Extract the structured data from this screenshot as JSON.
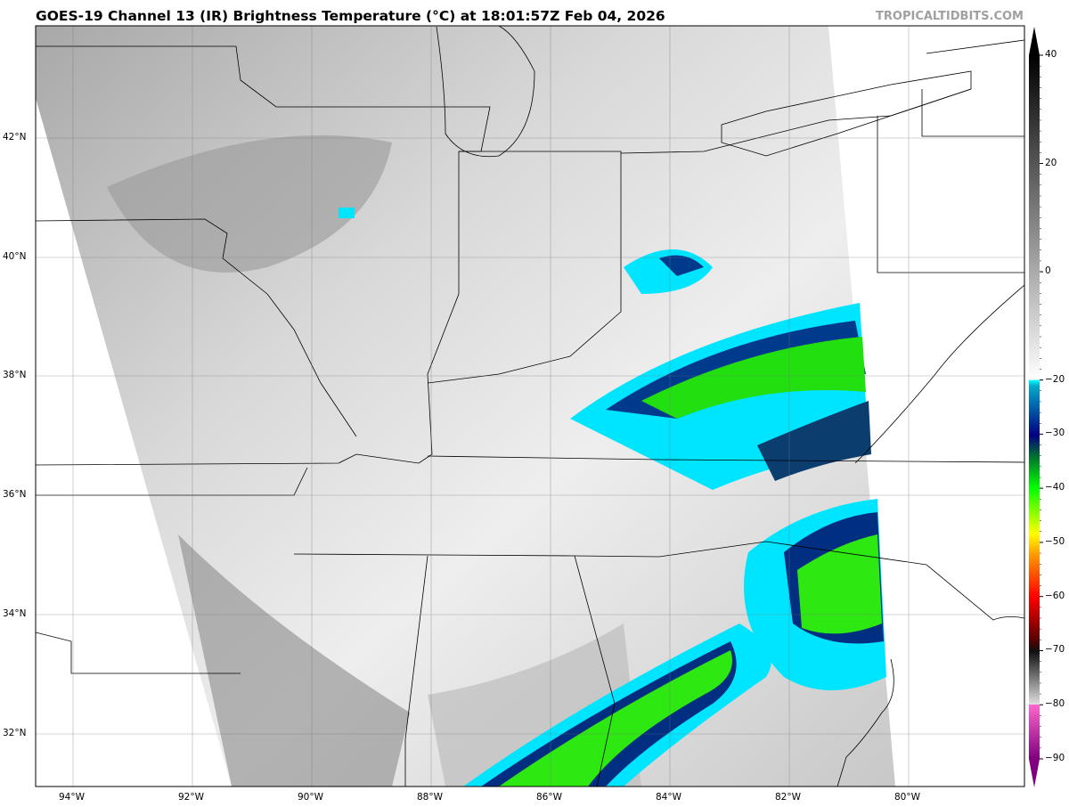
{
  "header": {
    "title": "GOES-19 Channel 13 (IR) Brightness Temperature (°C) at 18:01:57Z Feb 04, 2026",
    "credit": "TROPICALTIDBITS.COM"
  },
  "map": {
    "lon_labels": [
      "94°W",
      "92°W",
      "90°W",
      "88°W",
      "86°W",
      "84°W",
      "82°W",
      "80°W"
    ],
    "lat_labels": [
      "42°N",
      "40°N",
      "38°N",
      "36°N",
      "34°N",
      "32°N"
    ]
  },
  "colorbar": {
    "tick_labels": [
      "40",
      "20",
      "0",
      "−20",
      "−30",
      "−40",
      "−50",
      "−60",
      "−70",
      "−80",
      "−90"
    ],
    "tick_values": [
      40,
      20,
      0,
      -20,
      -30,
      -40,
      -50,
      -60,
      -70,
      -80,
      -90
    ],
    "range": [
      -90,
      40
    ],
    "colors": {
      "cyan": "#00ffff",
      "navy": "#000080",
      "green": "#00ff00",
      "yellow": "#ffff00",
      "red": "#ff0000",
      "magenta": "#ff66cc",
      "purple": "#800080"
    }
  }
}
